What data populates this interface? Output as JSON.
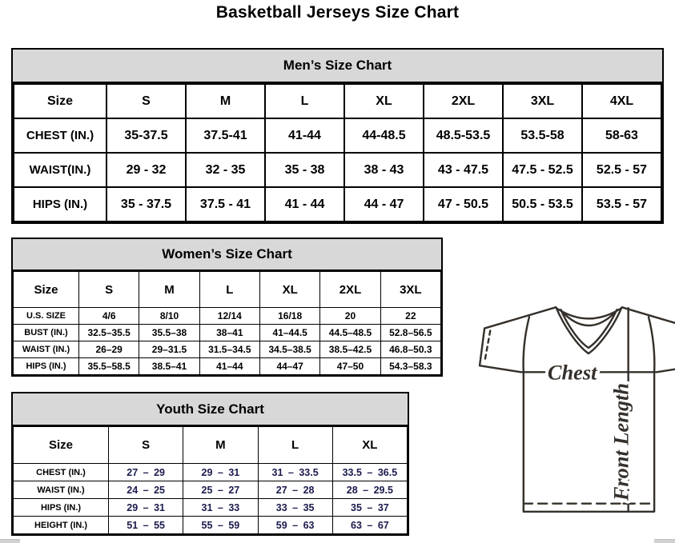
{
  "title": "Basketball Jerseys Size Chart",
  "tables": [
    {
      "id": "men",
      "title": "Men’s Size Chart",
      "header": [
        "Size",
        "S",
        "M",
        "L",
        "XL",
        "2XL",
        "3XL",
        "4XL"
      ],
      "rows": [
        {
          "label": "CHEST (IN.)",
          "cells": [
            "35-37.5",
            "37.5-41",
            "41-44",
            "44-48.5",
            "48.5-53.5",
            "53.5-58",
            "58-63"
          ]
        },
        {
          "label": "WAIST(IN.)",
          "cells": [
            "29 - 32",
            "32 - 35",
            "35 - 38",
            "38 - 43",
            "43 - 47.5",
            "47.5 - 52.5",
            "52.5 - 57"
          ]
        },
        {
          "label": "HIPS (IN.)",
          "cells": [
            "35 - 37.5",
            "37.5 - 41",
            "41 - 44",
            "44 - 47",
            "47 - 50.5",
            "50.5 - 53.5",
            "53.5 - 57"
          ]
        }
      ]
    },
    {
      "id": "women",
      "title": "Women’s Size Chart",
      "header": [
        "Size",
        "S",
        "M",
        "L",
        "XL",
        "2XL",
        "3XL"
      ],
      "rows": [
        {
          "label": "U.S. SIZE",
          "cells": [
            "4/6",
            "8/10",
            "12/14",
            "16/18",
            "20",
            "22"
          ]
        },
        {
          "label": "BUST (IN.)",
          "cells": [
            "32.5–35.5",
            "35.5–38",
            "38–41",
            "41–44.5",
            "44.5–48.5",
            "52.8–56.5"
          ]
        },
        {
          "label": "WAIST (IN.)",
          "cells": [
            "26–29",
            "29–31.5",
            "31.5–34.5",
            "34.5–38.5",
            "38.5–42.5",
            "46.8–50.3"
          ]
        },
        {
          "label": "HIPS (IN.)",
          "cells": [
            "35.5–58.5",
            "38.5–41",
            "41–44",
            "44–47",
            "47–50",
            "54.3–58.3"
          ]
        }
      ]
    },
    {
      "id": "youth",
      "title": "Youth Size Chart",
      "header": [
        "Size",
        "S",
        "M",
        "L",
        "XL"
      ],
      "rows": [
        {
          "label": "CHEST (IN.)",
          "cells": [
            "27 – 29",
            "29 – 31",
            "31 – 33.5",
            "33.5 – 36.5"
          ]
        },
        {
          "label": "WAIST (IN.)",
          "cells": [
            "24 – 25",
            "25 – 27",
            "27 – 28",
            "28 – 29.5"
          ]
        },
        {
          "label": "HIPS (IN.)",
          "cells": [
            "29 – 31",
            "31 – 33",
            "33 – 35",
            "35 – 37"
          ]
        },
        {
          "label": "HEIGHT (IN.)",
          "cells": [
            "51 – 55",
            "55 – 59",
            "59 – 63",
            "63 – 67"
          ]
        }
      ]
    }
  ],
  "diagram": {
    "chest_label": "Chest",
    "front_length_label": "Front Length"
  },
  "colors": {
    "header_bg": "#d8d8d8",
    "table_border": "#000000",
    "youth_value_text": "#1b1b4e",
    "diagram_stroke": "#35302b",
    "scrollbar_fragment": "#d2d2d2"
  }
}
